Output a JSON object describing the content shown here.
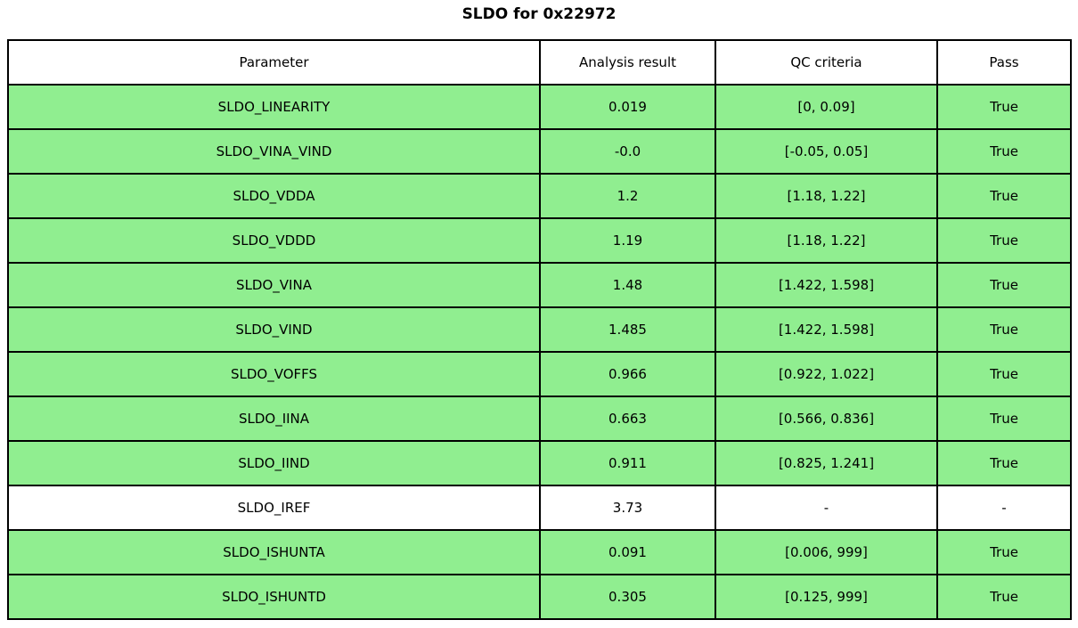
{
  "title": "SLDO for 0x22972",
  "colors": {
    "pass_green": "#90ee90",
    "neutral_white": "#ffffff",
    "border_black": "#000000"
  },
  "table": {
    "columns": [
      "Parameter",
      "Analysis result",
      "QC criteria",
      "Pass"
    ],
    "rows": [
      {
        "parameter": "SLDO_LINEARITY",
        "result": "0.019",
        "criteria": "[0, 0.09]",
        "pass": "True",
        "highlight": true
      },
      {
        "parameter": "SLDO_VINA_VIND",
        "result": "-0.0",
        "criteria": "[-0.05, 0.05]",
        "pass": "True",
        "highlight": true
      },
      {
        "parameter": "SLDO_VDDA",
        "result": "1.2",
        "criteria": "[1.18, 1.22]",
        "pass": "True",
        "highlight": true
      },
      {
        "parameter": "SLDO_VDDD",
        "result": "1.19",
        "criteria": "[1.18, 1.22]",
        "pass": "True",
        "highlight": true
      },
      {
        "parameter": "SLDO_VINA",
        "result": "1.48",
        "criteria": "[1.422, 1.598]",
        "pass": "True",
        "highlight": true
      },
      {
        "parameter": "SLDO_VIND",
        "result": "1.485",
        "criteria": "[1.422, 1.598]",
        "pass": "True",
        "highlight": true
      },
      {
        "parameter": "SLDO_VOFFS",
        "result": "0.966",
        "criteria": "[0.922, 1.022]",
        "pass": "True",
        "highlight": true
      },
      {
        "parameter": "SLDO_IINA",
        "result": "0.663",
        "criteria": "[0.566, 0.836]",
        "pass": "True",
        "highlight": true
      },
      {
        "parameter": "SLDO_IIND",
        "result": "0.911",
        "criteria": "[0.825, 1.241]",
        "pass": "True",
        "highlight": true
      },
      {
        "parameter": "SLDO_IREF",
        "result": "3.73",
        "criteria": "-",
        "pass": "-",
        "highlight": false
      },
      {
        "parameter": "SLDO_ISHUNTA",
        "result": "0.091",
        "criteria": "[0.006, 999]",
        "pass": "True",
        "highlight": true
      },
      {
        "parameter": "SLDO_ISHUNTD",
        "result": "0.305",
        "criteria": "[0.125, 999]",
        "pass": "True",
        "highlight": true
      }
    ]
  },
  "chart_data": {
    "type": "table",
    "title": "SLDO for 0x22972",
    "columns": [
      "Parameter",
      "Analysis result",
      "QC criteria",
      "Pass"
    ],
    "rows": [
      [
        "SLDO_LINEARITY",
        "0.019",
        "[0, 0.09]",
        "True"
      ],
      [
        "SLDO_VINA_VIND",
        "-0.0",
        "[-0.05, 0.05]",
        "True"
      ],
      [
        "SLDO_VDDA",
        "1.2",
        "[1.18, 1.22]",
        "True"
      ],
      [
        "SLDO_VDDD",
        "1.19",
        "[1.18, 1.22]",
        "True"
      ],
      [
        "SLDO_VINA",
        "1.48",
        "[1.422, 1.598]",
        "True"
      ],
      [
        "SLDO_VIND",
        "1.485",
        "[1.422, 1.598]",
        "True"
      ],
      [
        "SLDO_VOFFS",
        "0.966",
        "[0.922, 1.022]",
        "True"
      ],
      [
        "SLDO_IINA",
        "0.663",
        "[0.566, 0.836]",
        "True"
      ],
      [
        "SLDO_IIND",
        "0.911",
        "[0.825, 1.241]",
        "True"
      ],
      [
        "SLDO_IREF",
        "3.73",
        "-",
        "-"
      ],
      [
        "SLDO_ISHUNTA",
        "0.091",
        "[0.006, 999]",
        "True"
      ],
      [
        "SLDO_ISHUNTD",
        "0.305",
        "[0.125, 999]",
        "True"
      ]
    ],
    "row_colors": [
      "green",
      "green",
      "green",
      "green",
      "green",
      "green",
      "green",
      "green",
      "green",
      "white",
      "green",
      "green"
    ],
    "notes": "green = passing row (#90ee90), white = not-applicable row; black 2px grid borders; all cells center-aligned"
  }
}
